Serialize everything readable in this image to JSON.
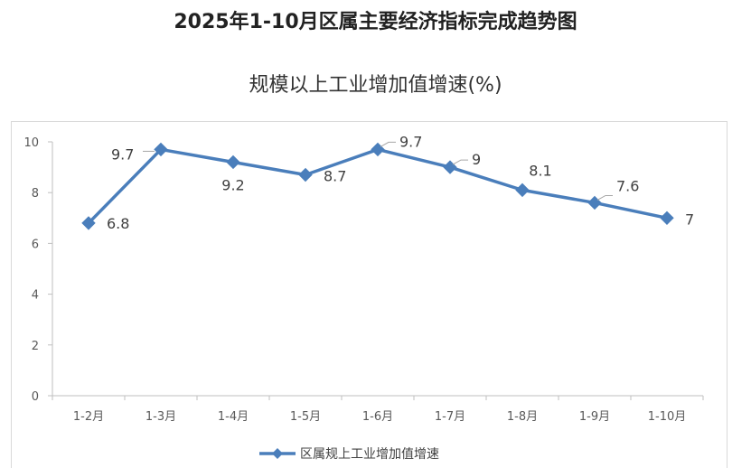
{
  "page": {
    "title": "2025年1-10月区属主要经济指标完成趋势图"
  },
  "chart_data": {
    "type": "line",
    "title": "规模以上工业增加值增速(%)",
    "xlabel": "",
    "ylabel": "",
    "categories": [
      "1-2月",
      "1-3月",
      "1-4月",
      "1-5月",
      "1-6月",
      "1-7月",
      "1-8月",
      "1-9月",
      "1-10月"
    ],
    "series": [
      {
        "name": "区属规上工业增加值增速",
        "values": [
          6.8,
          9.7,
          9.2,
          8.7,
          9.7,
          9,
          8.1,
          7.6,
          7
        ],
        "color": "#4a7ebb"
      }
    ],
    "ylim": [
      0,
      10
    ],
    "yticks": [
      0,
      2,
      4,
      6,
      8,
      10
    ],
    "grid": false,
    "data_labels": true,
    "legend": "bottom",
    "marker": "diamond"
  }
}
